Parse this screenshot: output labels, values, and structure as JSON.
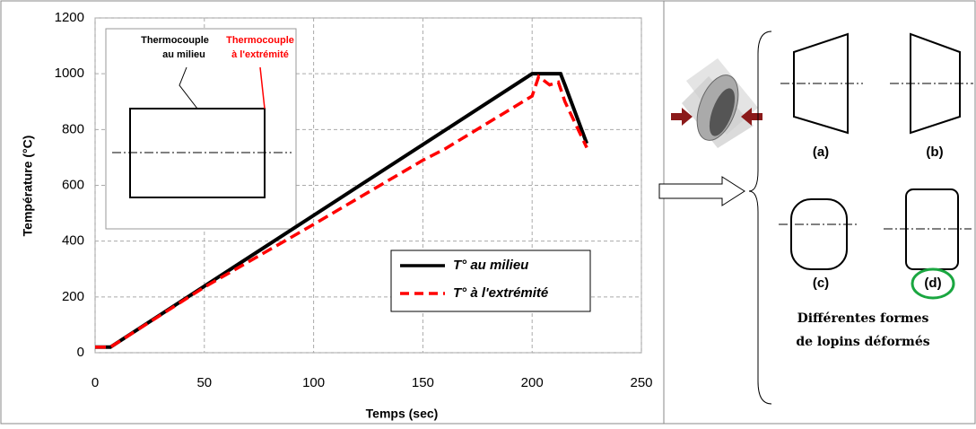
{
  "chart_data": {
    "type": "line",
    "xlabel": "Temps (sec)",
    "ylabel": "Température (°C)",
    "xlim": [
      0,
      250
    ],
    "xticks": [
      0,
      50,
      100,
      150,
      200,
      250
    ],
    "ylim": [
      0,
      1200
    ],
    "yticks": [
      0,
      200,
      400,
      600,
      800,
      1000,
      1200
    ],
    "grid": true,
    "legend": "lower right",
    "series": [
      {
        "name": "T° au milieu",
        "color": "#000000",
        "dash": false,
        "x": [
          0,
          7,
          200,
          213,
          215,
          225
        ],
        "values": [
          20,
          20,
          1000,
          1000,
          960,
          750
        ]
      },
      {
        "name": "T° à l'extrémité",
        "color": "#ff0000",
        "dash": true,
        "x": [
          0,
          7,
          50,
          100,
          150,
          160,
          200,
          203,
          208,
          212,
          215,
          225
        ],
        "values": [
          20,
          20,
          235,
          460,
          690,
          730,
          920,
          990,
          960,
          970,
          900,
          735
        ]
      }
    ],
    "annotations": {
      "middle": [
        "Thermocouple",
        "au milieu"
      ],
      "end": [
        "Thermocouple",
        "à l'extrémité"
      ]
    }
  },
  "diagram": {
    "shapes": [
      "(a)",
      "(b)",
      "(c)",
      "(d)"
    ],
    "caption": [
      "Différentes formes",
      "de lopins déformés"
    ]
  }
}
